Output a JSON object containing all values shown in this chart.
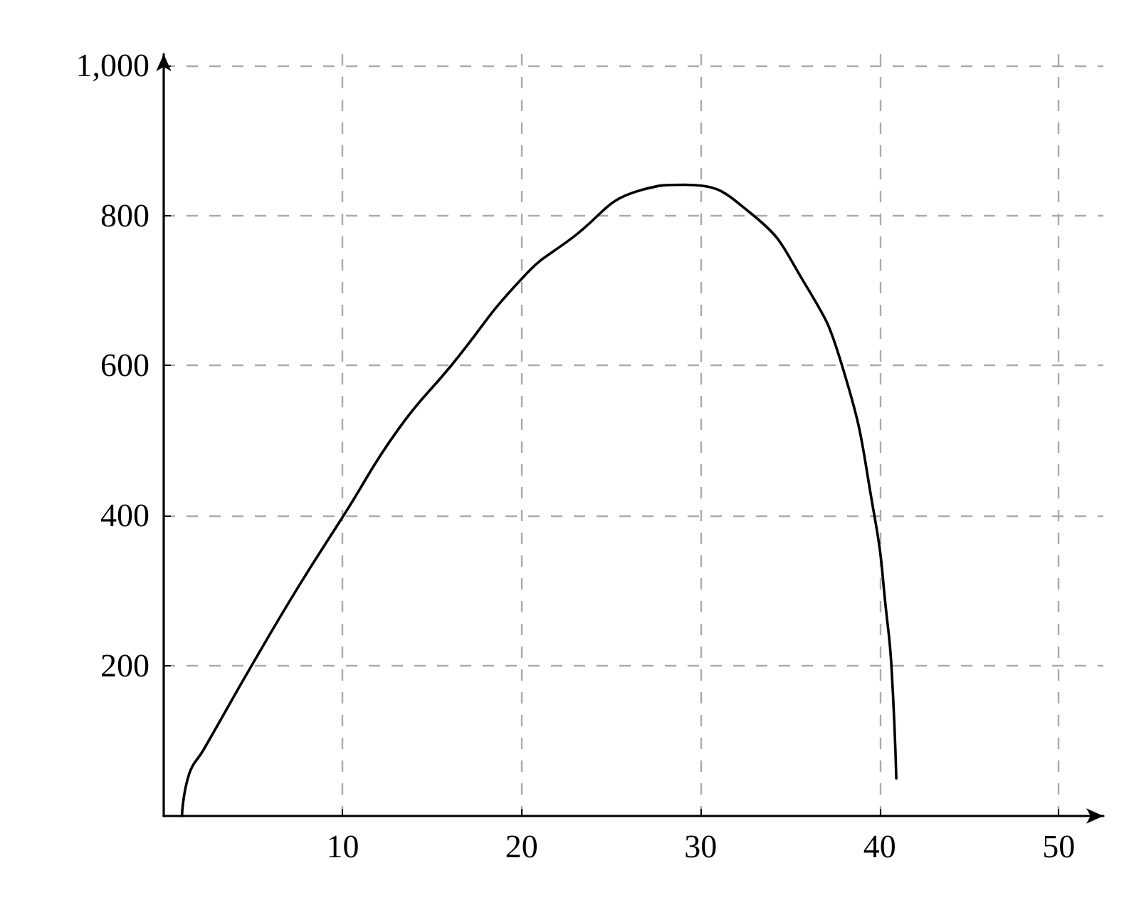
{
  "chart_data": {
    "type": "line",
    "x": [
      1.02,
      1.42,
      2.22,
      4.88,
      7.54,
      10.07,
      13.1,
      16.06,
      20.05,
      22.7,
      26.7,
      29.1,
      32.8,
      35.7,
      37.9,
      39.7,
      40.4,
      40.66,
      40.93
    ],
    "series": [
      {
        "color": "#000000",
        "values": [
          0,
          56,
          88,
          199,
          306,
          401,
          515,
          600,
          717,
          768,
          834,
          841,
          803,
          714,
          600,
          401,
          265,
          199,
          50
        ]
      }
    ],
    "xlim": [
      0,
      52.5
    ],
    "ylim": [
      0,
      1015
    ],
    "xticks": [
      10,
      20,
      30,
      40,
      50
    ],
    "yticks": [
      200,
      400,
      600,
      800,
      {
        "value": 1000,
        "label": "1,000"
      }
    ],
    "grid": true,
    "marker": "none",
    "line_style": "solid"
  }
}
